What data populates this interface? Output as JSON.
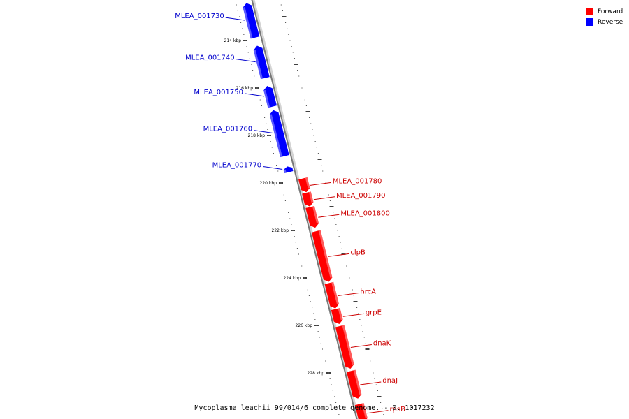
{
  "caption": "Mycoplasma leachii 99/014/6 complete genome. - 0..1017232",
  "legend": [
    {
      "label": "Forward",
      "color": "#ff0000"
    },
    {
      "label": "Reverse",
      "color": "#0000ff"
    }
  ],
  "colors": {
    "forward": "#ff0000",
    "reverse": "#0000ff",
    "label_forward": "#cc0000",
    "label_reverse": "#0000cc"
  },
  "ticks": [
    {
      "kbp": 214,
      "label": "214 kbp"
    },
    {
      "kbp": 216,
      "label": "216 kbp"
    },
    {
      "kbp": 218,
      "label": "218 kbp"
    },
    {
      "kbp": 220,
      "label": "220 kbp"
    },
    {
      "kbp": 222,
      "label": "222 kbp"
    },
    {
      "kbp": 224,
      "label": "224 kbp"
    },
    {
      "kbp": 226,
      "label": "226 kbp"
    },
    {
      "kbp": 228,
      "label": "228 kbp"
    }
  ],
  "genes": [
    {
      "name": "MLEA_001730",
      "strand": "reverse",
      "start_kbp": 212.4,
      "end_kbp": 213.9
    },
    {
      "name": "MLEA_001740",
      "strand": "reverse",
      "start_kbp": 214.2,
      "end_kbp": 215.6
    },
    {
      "name": "MLEA_001750",
      "strand": "reverse",
      "start_kbp": 215.9,
      "end_kbp": 216.8
    },
    {
      "name": "MLEA_001760",
      "strand": "reverse",
      "start_kbp": 216.9,
      "end_kbp": 218.9
    },
    {
      "name": "MLEA_001770",
      "strand": "reverse",
      "start_kbp": 219.3,
      "end_kbp": 219.55
    },
    {
      "name": "MLEA_001780",
      "strand": "forward",
      "start_kbp": 219.8,
      "end_kbp": 220.4
    },
    {
      "name": "MLEA_001790",
      "strand": "forward",
      "start_kbp": 220.4,
      "end_kbp": 221.0
    },
    {
      "name": "MLEA_001800",
      "strand": "forward",
      "start_kbp": 221.0,
      "end_kbp": 221.9
    },
    {
      "name": "clpB",
      "strand": "forward",
      "start_kbp": 222.0,
      "end_kbp": 224.2
    },
    {
      "name": "hrcA",
      "strand": "forward",
      "start_kbp": 224.2,
      "end_kbp": 225.3
    },
    {
      "name": "grpE",
      "strand": "forward",
      "start_kbp": 225.3,
      "end_kbp": 225.95
    },
    {
      "name": "dnaK",
      "strand": "forward",
      "start_kbp": 226.0,
      "end_kbp": 227.85
    },
    {
      "name": "dnaJ",
      "strand": "forward",
      "start_kbp": 227.9,
      "end_kbp": 229.1
    },
    {
      "name": "rpsB",
      "strand": "forward",
      "start_kbp": 229.3,
      "end_kbp": 230.1
    }
  ]
}
